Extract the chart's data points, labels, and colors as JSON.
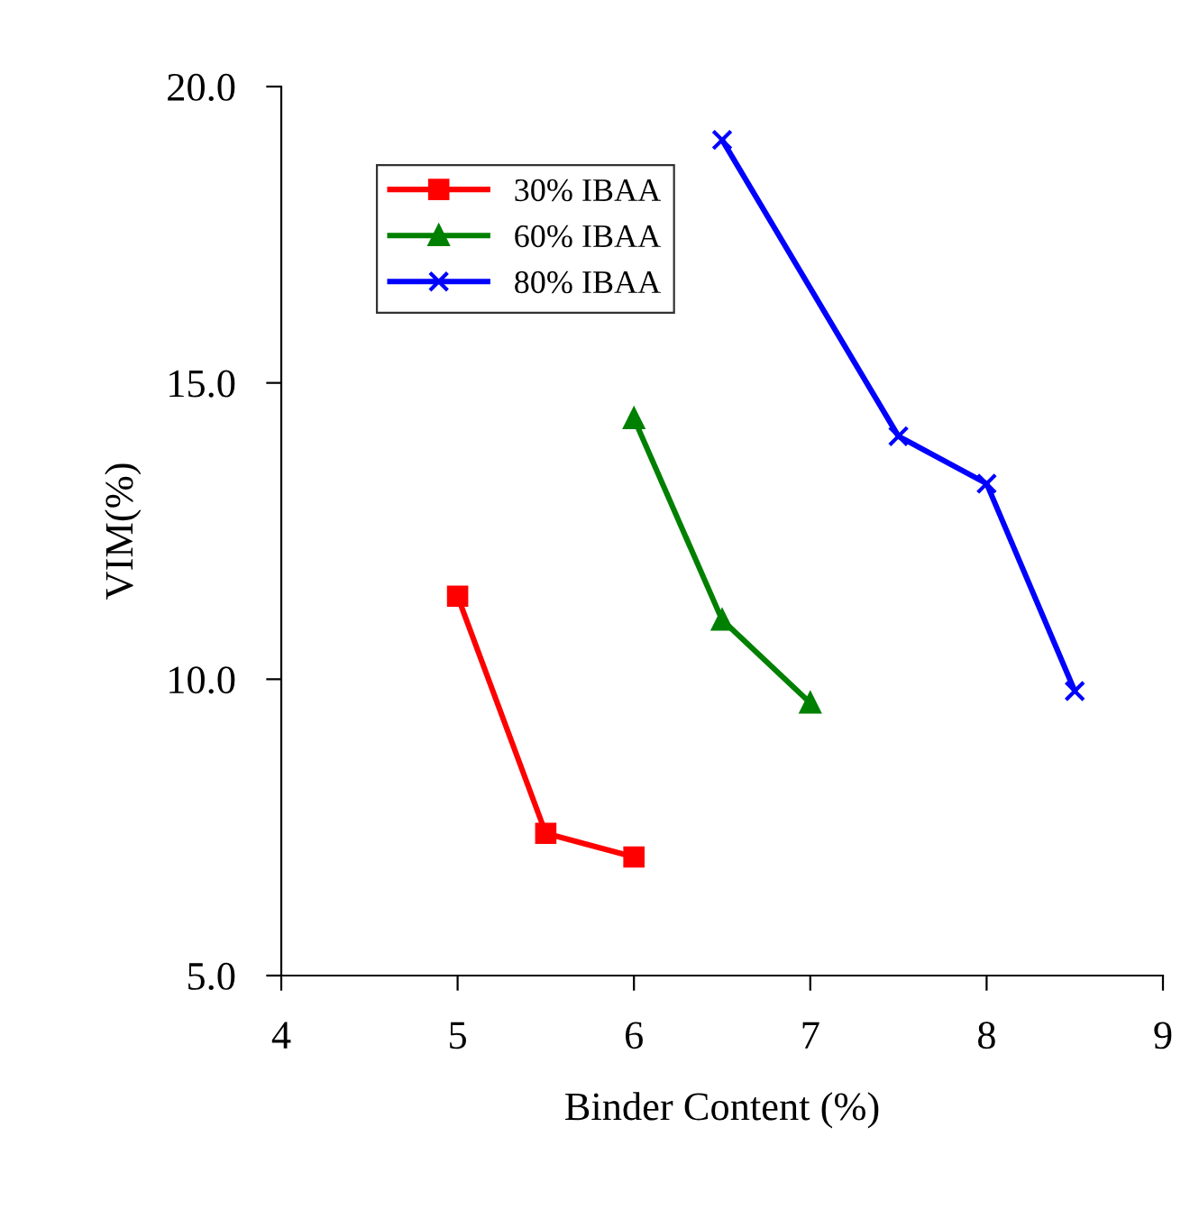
{
  "chart_data": {
    "type": "line",
    "xlabel": "Binder Content (%)",
    "ylabel": "VIM(%)",
    "series": [
      {
        "name": "30% IBAA",
        "color": "#ff0000",
        "marker": "square",
        "x": [
          5,
          5.5,
          6
        ],
        "values": [
          11.4,
          7.4,
          7.0
        ]
      },
      {
        "name": "60% IBAA",
        "color": "#008000",
        "marker": "triangle",
        "x": [
          6,
          6.5,
          7
        ],
        "values": [
          14.4,
          11.0,
          9.6
        ]
      },
      {
        "name": "80% IBAA",
        "color": "#0000ff",
        "marker": "cross",
        "x": [
          6.5,
          7.5,
          8,
          8.5
        ],
        "values": [
          19.1,
          14.1,
          13.3,
          9.8
        ]
      }
    ],
    "xlim": [
      4,
      9
    ],
    "xticks": [
      4,
      5,
      6,
      7,
      8,
      9
    ],
    "ylim": [
      5,
      20
    ],
    "yticks": [
      {
        "value": 5,
        "label": "5.0"
      },
      {
        "value": 10,
        "label": "10.0"
      },
      {
        "value": 15,
        "label": "15.0"
      },
      {
        "value": 20,
        "label": "20.0"
      }
    ],
    "legend": "top left",
    "grid": false,
    "line_style": "solid"
  }
}
